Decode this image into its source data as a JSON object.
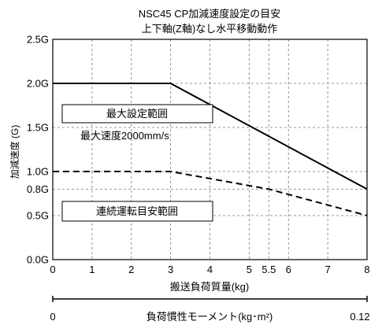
{
  "chart_data": {
    "type": "line",
    "title_lines": [
      "NSC45 CP加減速度設定の目安",
      "上下軸(Z軸)なし水平移動動作"
    ],
    "ylabel": "加減速度 (G)",
    "xlabel": "搬送負荷質量(kg)",
    "xlim": [
      0,
      8
    ],
    "ylim": [
      0,
      2.5
    ],
    "x_ticks": [
      {
        "value": 0,
        "label": "0"
      },
      {
        "value": 1,
        "label": "1"
      },
      {
        "value": 2,
        "label": "2"
      },
      {
        "value": 3,
        "label": "3"
      },
      {
        "value": 4,
        "label": "4"
      },
      {
        "value": 5,
        "label": "5"
      },
      {
        "value": 5.5,
        "label": "5.5"
      },
      {
        "value": 6,
        "label": "6"
      },
      {
        "value": 7,
        "label": "7"
      },
      {
        "value": 8,
        "label": "8"
      }
    ],
    "y_ticks": [
      {
        "value": 0,
        "label": "0.0G"
      },
      {
        "value": 0.5,
        "label": "0.5G"
      },
      {
        "value": 0.8,
        "label": "0.8G"
      },
      {
        "value": 1.0,
        "label": "1.0G"
      },
      {
        "value": 1.5,
        "label": "1.5G"
      },
      {
        "value": 2.0,
        "label": "2.0G"
      },
      {
        "value": 2.5,
        "label": "2.5G"
      }
    ],
    "grid": true,
    "series": [
      {
        "name": "最大設定範囲",
        "style": "solid",
        "color": "#000000",
        "x": [
          0,
          3,
          8
        ],
        "y": [
          2.0,
          2.0,
          0.8
        ]
      },
      {
        "name": "連続運転目安範囲",
        "style": "dashed",
        "color": "#000000",
        "x": [
          0,
          3,
          5.5,
          8
        ],
        "y": [
          1.0,
          1.0,
          0.8,
          0.5
        ]
      }
    ],
    "annotations": {
      "max_box": "最大設定範囲",
      "max_speed": "最大速度2000mm/s",
      "cont_box": "連続運転目安範囲"
    },
    "moment_axis": {
      "label": "負荷慣性モーメント(kg･m²)",
      "min_label": "0",
      "max_label": "0.12"
    }
  }
}
